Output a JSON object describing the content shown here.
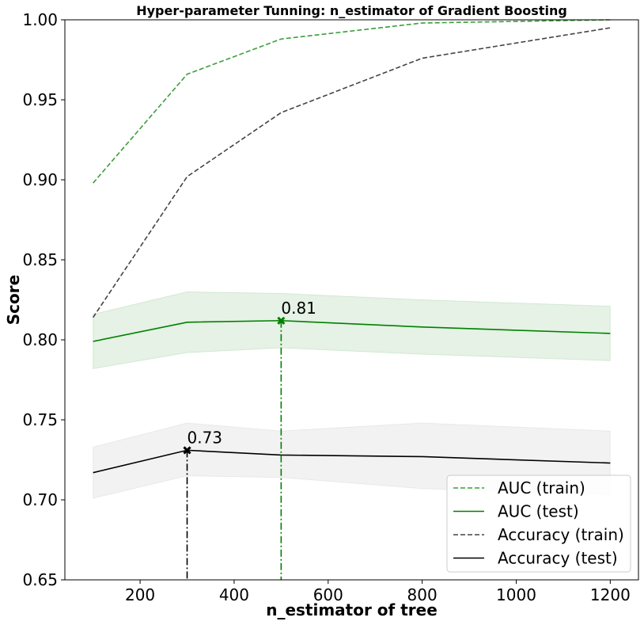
{
  "chart_data": {
    "type": "line",
    "title": "Hyper-parameter Tunning: n_estimator of Gradient Boosting",
    "xlabel": "n_estimator of tree",
    "ylabel": "Score",
    "x": [
      100,
      300,
      500,
      800,
      1200
    ],
    "xlim": [
      40,
      1260
    ],
    "ylim": [
      0.65,
      1.0
    ],
    "xticks": [
      200,
      400,
      600,
      800,
      1000,
      1200
    ],
    "xtick_labels": [
      "200",
      "400",
      "600",
      "800",
      "1000",
      "1200"
    ],
    "yticks": [
      0.65,
      0.7,
      0.75,
      0.8,
      0.85,
      0.9,
      0.95,
      1.0
    ],
    "ytick_labels": [
      "0.65",
      "0.70",
      "0.75",
      "0.80",
      "0.85",
      "0.90",
      "0.95",
      "1.00"
    ],
    "grid": false,
    "legend_position": "lower-right",
    "series": [
      {
        "name": "AUC (train)",
        "values": [
          0.898,
          0.966,
          0.988,
          0.998,
          1.0
        ],
        "color": "#3a9e3a",
        "dash": "dashed"
      },
      {
        "name": "AUC (test)",
        "values": [
          0.799,
          0.811,
          0.812,
          0.808,
          0.804
        ],
        "color": "#008000",
        "dash": "solid",
        "band_lower": [
          0.782,
          0.792,
          0.795,
          0.791,
          0.787
        ],
        "band_upper": [
          0.816,
          0.83,
          0.829,
          0.825,
          0.821
        ],
        "band_color": "#008000"
      },
      {
        "name": "Accuracy (train)",
        "values": [
          0.814,
          0.902,
          0.942,
          0.976,
          0.995
        ],
        "color": "#444444",
        "dash": "dashed"
      },
      {
        "name": "Accuracy (test)",
        "values": [
          0.717,
          0.731,
          0.728,
          0.727,
          0.723
        ],
        "color": "#000000",
        "dash": "solid",
        "band_lower": [
          0.701,
          0.715,
          0.714,
          0.707,
          0.703
        ],
        "band_upper": [
          0.733,
          0.748,
          0.743,
          0.748,
          0.743
        ],
        "band_color": "#808080"
      }
    ],
    "annotations": [
      {
        "x": 500,
        "y": 0.812,
        "text": "0.81",
        "color": "#008000"
      },
      {
        "x": 300,
        "y": 0.731,
        "text": "0.73",
        "color": "#000000"
      }
    ]
  }
}
